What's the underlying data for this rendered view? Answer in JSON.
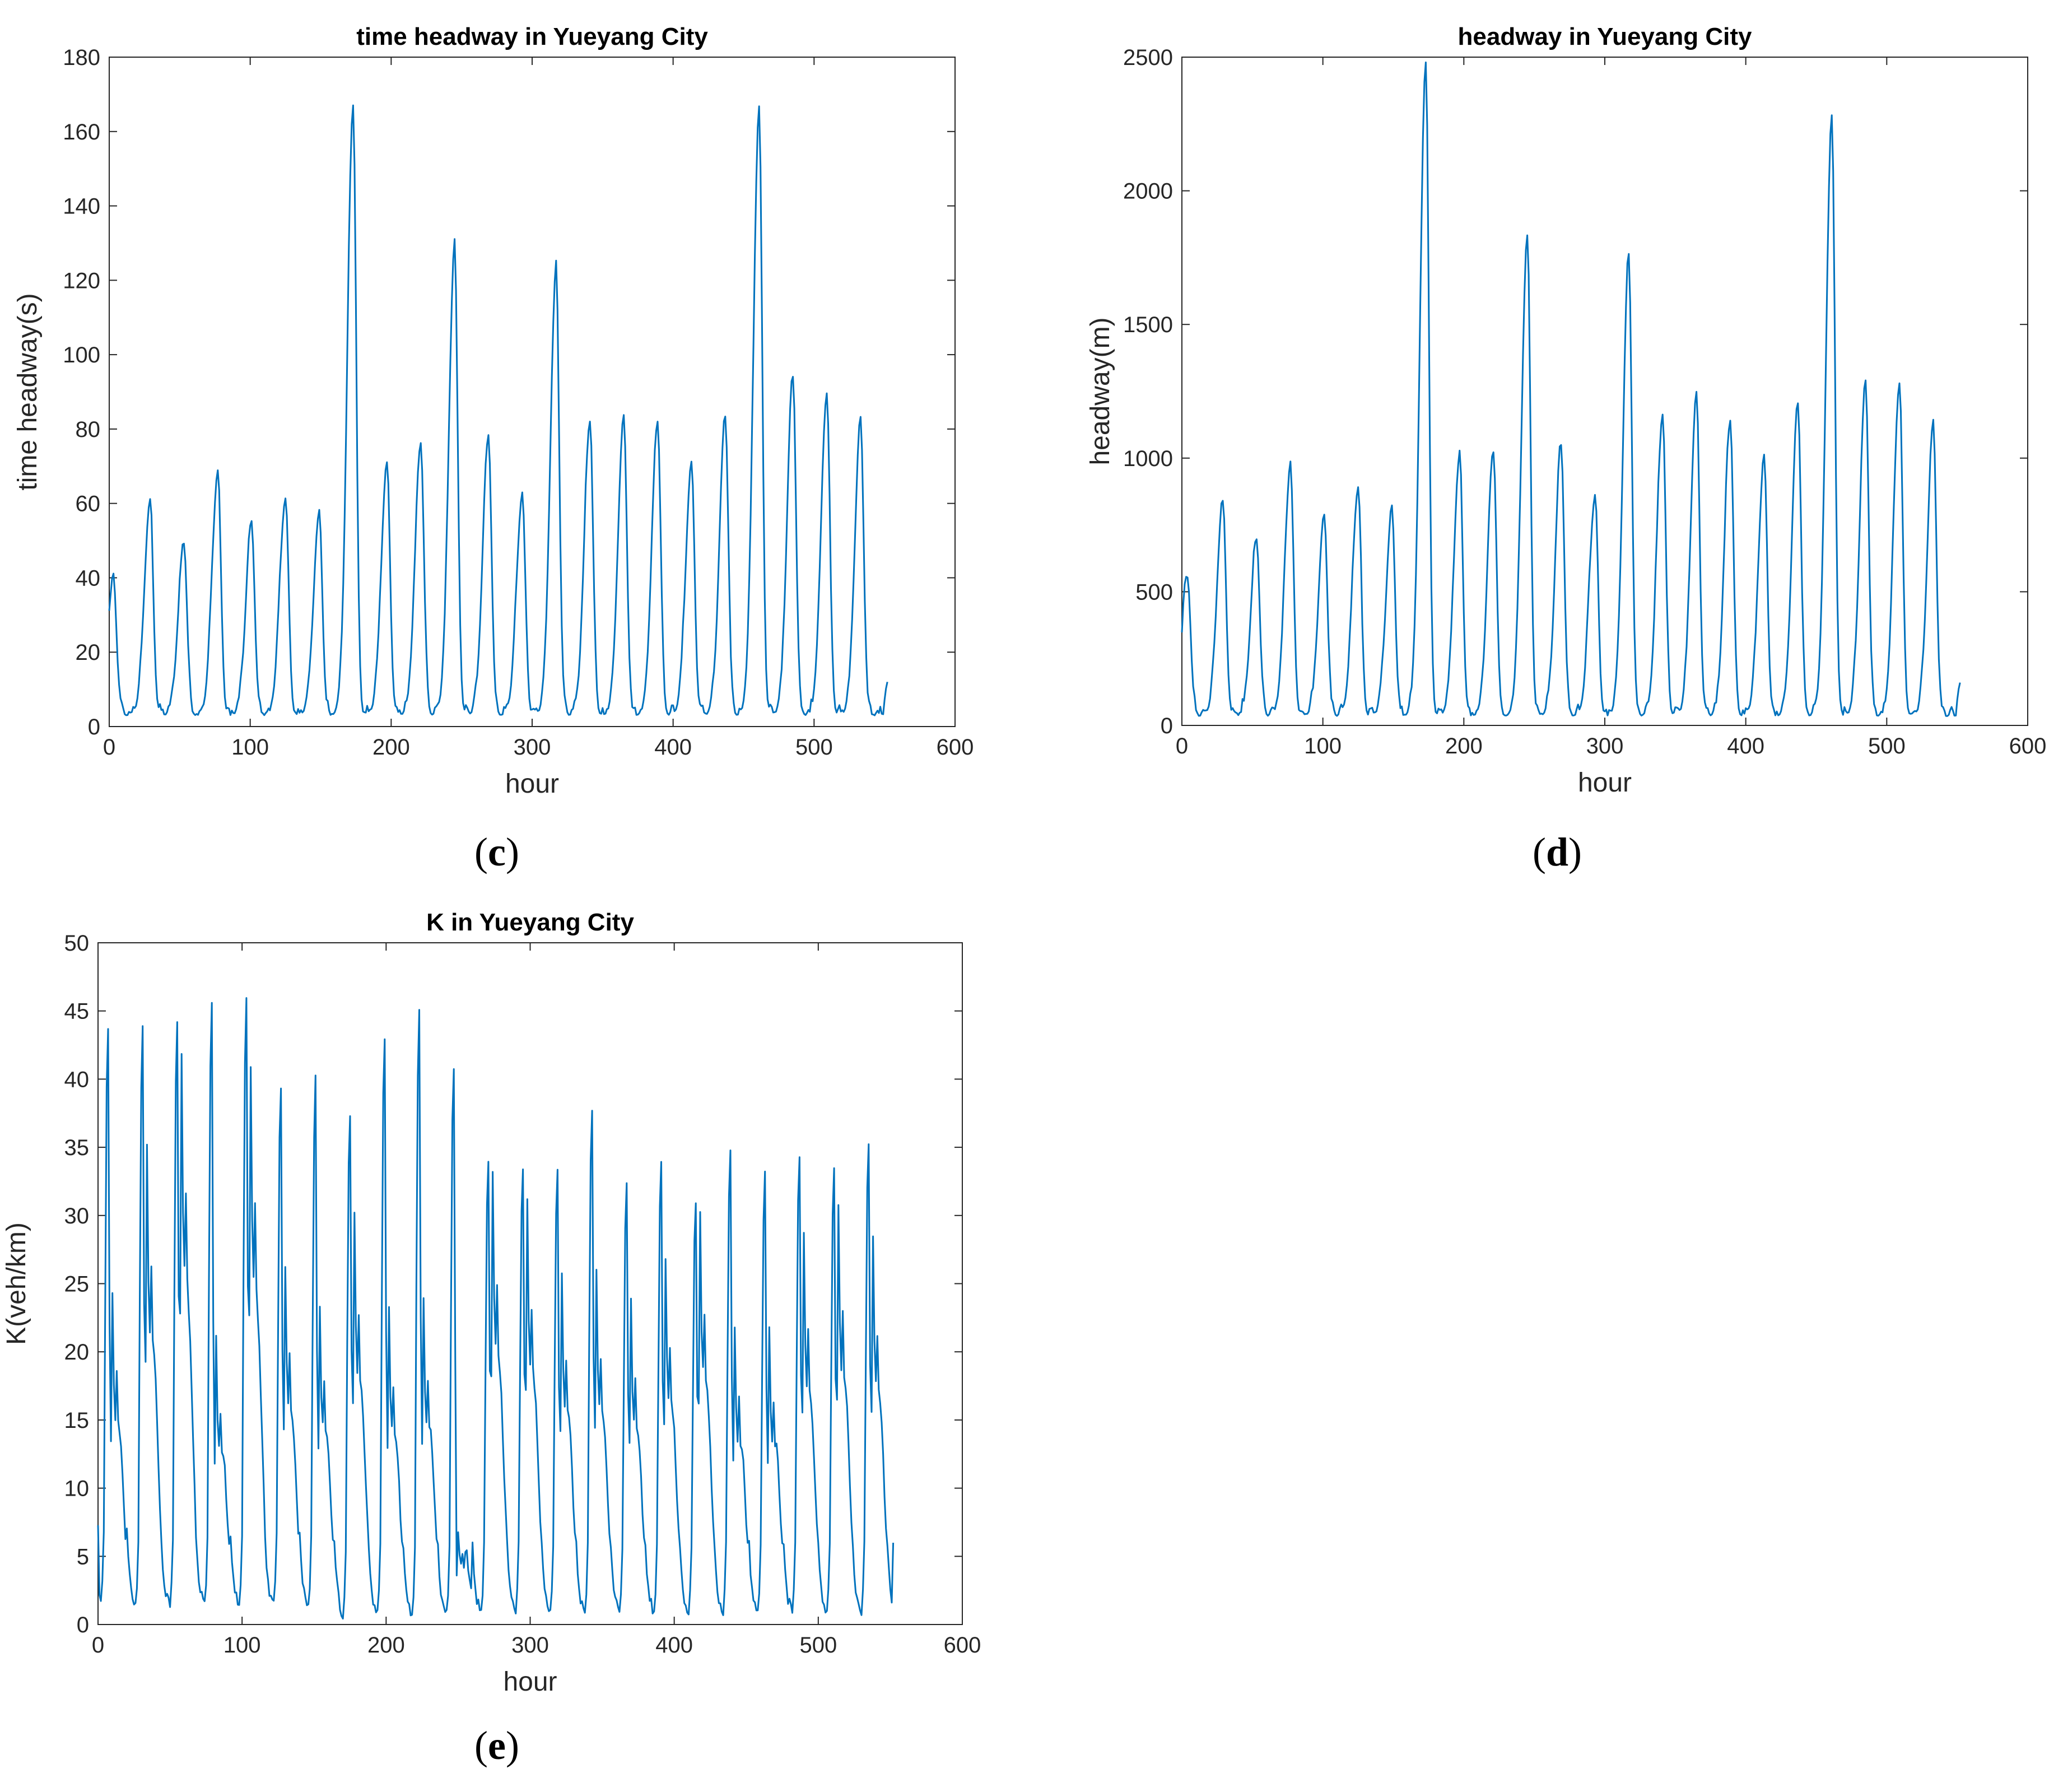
{
  "panel_labels": {
    "c": "c",
    "d": "d",
    "e": "e"
  },
  "chart_data": [
    {
      "id": "c",
      "type": "line",
      "title": "time headway in Yueyang City",
      "xlabel": "hour",
      "ylabel": "time headway(s)",
      "xlim": [
        0,
        600
      ],
      "ylim": [
        0,
        180
      ],
      "xticks": [
        0,
        100,
        200,
        300,
        400,
        500,
        600
      ],
      "yticks": [
        0,
        20,
        40,
        60,
        80,
        100,
        120,
        140,
        160,
        180
      ],
      "color": "#0072BD",
      "n_points": 552,
      "base": 3,
      "rise": 3,
      "valley": 2.5,
      "width": 4,
      "peaks": [
        [
          3,
          39
        ],
        [
          29,
          60
        ],
        [
          53,
          49
        ],
        [
          77,
          68
        ],
        [
          101,
          54
        ],
        [
          125,
          61
        ],
        [
          149,
          56
        ],
        [
          173,
          167
        ],
        [
          197,
          70
        ],
        [
          221,
          76
        ],
        [
          245,
          129
        ],
        [
          269,
          78
        ],
        [
          293,
          62
        ],
        [
          317,
          123
        ],
        [
          341,
          82
        ],
        [
          365,
          83
        ],
        [
          389,
          82
        ],
        [
          413,
          70
        ],
        [
          437,
          83
        ],
        [
          461,
          166
        ],
        [
          485,
          94
        ],
        [
          509,
          89
        ],
        [
          533,
          81
        ]
      ],
      "end_value": 12
    },
    {
      "id": "d",
      "type": "line",
      "title": "headway in Yueyang City",
      "xlabel": "hour",
      "ylabel": "headway(m)",
      "xlim": [
        0,
        600
      ],
      "ylim": [
        0,
        2500
      ],
      "xticks": [
        0,
        100,
        200,
        300,
        400,
        500,
        600
      ],
      "yticks": [
        0,
        500,
        1000,
        1500,
        2000,
        2500
      ],
      "color": "#0072BD",
      "n_points": 552,
      "base": 35,
      "rise": 40,
      "valley": 30,
      "width": 4,
      "peaks": [
        [
          4,
          550
        ],
        [
          29,
          840
        ],
        [
          53,
          690
        ],
        [
          77,
          970
        ],
        [
          101,
          780
        ],
        [
          125,
          885
        ],
        [
          149,
          805
        ],
        [
          173,
          2480
        ],
        [
          197,
          1005
        ],
        [
          221,
          1020
        ],
        [
          245,
          1830
        ],
        [
          269,
          1045
        ],
        [
          293,
          850
        ],
        [
          317,
          1745
        ],
        [
          341,
          1160
        ],
        [
          365,
          1220
        ],
        [
          389,
          1140
        ],
        [
          413,
          990
        ],
        [
          437,
          1200
        ],
        [
          461,
          2280
        ],
        [
          485,
          1275
        ],
        [
          509,
          1275
        ],
        [
          533,
          1115
        ]
      ],
      "end_value": 160
    },
    {
      "id": "e",
      "type": "line",
      "title": "K in Yueyang City",
      "xlabel": "hour",
      "ylabel": "K(veh/km)",
      "xlim": [
        0,
        600
      ],
      "ylim": [
        0,
        50
      ],
      "xticks": [
        0,
        100,
        200,
        300,
        400,
        500,
        600
      ],
      "yticks": [
        0,
        5,
        10,
        15,
        20,
        25,
        30,
        35,
        40,
        45,
        50
      ],
      "color": "#0072BD",
      "n_points": 552,
      "start_value": 7,
      "end_value": 6,
      "days": [
        {
          "a": 43.5,
          "b": 24.5,
          "low": 1.8
        },
        {
          "a": 44.0,
          "b": 35.0,
          "low": 1.3
        },
        {
          "a": 44.0,
          "b": 42.0,
          "low": 1.5
        },
        {
          "a": 45.5,
          "b": 21.0,
          "low": 1.6
        },
        {
          "a": 46.0,
          "b": 41.0,
          "low": 1.3
        },
        {
          "a": 39.5,
          "b": 26.5,
          "low": 1.5
        },
        {
          "a": 40.0,
          "b": 23.5,
          "low": 1.4
        },
        {
          "a": 37.5,
          "b": 30.0,
          "low": 0.5
        },
        {
          "a": 43.0,
          "b": 23.0,
          "low": 0.8
        },
        {
          "a": 45.0,
          "b": 24.0,
          "low": 0.6
        },
        {
          "a": 41.0,
          "b": 7.0,
          "low": 0.8
        },
        {
          "a": 34.0,
          "b": 33.0,
          "low": 0.9
        },
        {
          "a": 33.5,
          "b": 31.0,
          "low": 0.9
        },
        {
          "a": 33.5,
          "b": 26.0,
          "low": 0.8
        },
        {
          "a": 37.5,
          "b": 26.0,
          "low": 0.8
        },
        {
          "a": 32.5,
          "b": 24.0,
          "low": 0.8
        },
        {
          "a": 34.0,
          "b": 27.0,
          "low": 0.8
        },
        {
          "a": 31.0,
          "b": 30.0,
          "low": 0.8
        },
        {
          "a": 35.0,
          "b": 22.0,
          "low": 0.9
        },
        {
          "a": 33.0,
          "b": 22.0,
          "low": 0.8
        },
        {
          "a": 34.5,
          "b": 28.5,
          "low": 0.9
        },
        {
          "a": 33.5,
          "b": 30.5,
          "low": 0.8
        },
        {
          "a": 35.5,
          "b": 28.5,
          "low": 0.9
        }
      ]
    }
  ]
}
